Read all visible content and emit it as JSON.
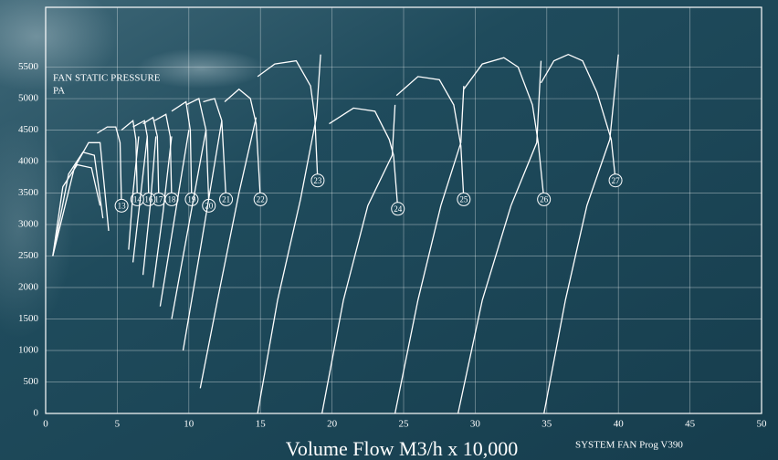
{
  "chart_data": {
    "type": "line",
    "y_label_lines": [
      "FAN STATIC PRESSURE",
      "PA"
    ],
    "x_label": "Volume Flow M3/h x 10,000",
    "footnote": "SYSTEM FAN Prog V390",
    "xlim": [
      0,
      50
    ],
    "ylim": [
      0,
      6450
    ],
    "xticks": [
      0,
      5,
      10,
      15,
      20,
      25,
      30,
      35,
      40,
      45,
      50
    ],
    "yticks": [
      0,
      500,
      1000,
      1500,
      2000,
      2500,
      3000,
      3500,
      4000,
      4500,
      5000,
      5500
    ],
    "grid": true,
    "color": "#ffffff",
    "series": [
      {
        "name": "27",
        "x": [
          34.6,
          35.5,
          36.5,
          37.5,
          38.5,
          39.5,
          39.8
        ],
        "values": [
          5250,
          5600,
          5700,
          5600,
          5100,
          4350,
          3700
        ]
      },
      {
        "name": "26",
        "x": [
          29.2,
          30.5,
          32,
          33,
          34,
          34.4,
          34.8
        ],
        "values": [
          5150,
          5550,
          5650,
          5500,
          4900,
          4300,
          3400
        ]
      },
      {
        "name": "25",
        "x": [
          24.5,
          26,
          27.5,
          28.5,
          29,
          29.2
        ],
        "values": [
          5050,
          5350,
          5300,
          4900,
          4250,
          3400
        ]
      },
      {
        "name": "24",
        "x": [
          19.8,
          21.5,
          23,
          24,
          24.3,
          24.6
        ],
        "values": [
          4600,
          4850,
          4800,
          4350,
          4100,
          3250
        ]
      },
      {
        "name": "23",
        "x": [
          14.8,
          16,
          17.5,
          18.5,
          18.8,
          19
        ],
        "values": [
          5350,
          5550,
          5600,
          5200,
          4700,
          3700
        ]
      },
      {
        "name": "22",
        "x": [
          12.5,
          13.5,
          14.3,
          14.7,
          15
        ],
        "values": [
          4950,
          5150,
          5000,
          4600,
          3400
        ]
      },
      {
        "name": "21",
        "x": [
          11,
          11.8,
          12.3,
          12.6
        ],
        "values": [
          4950,
          5000,
          4650,
          3400
        ]
      },
      {
        "name": "20",
        "x": [
          9.8,
          10.7,
          11.2,
          11.4
        ],
        "values": [
          4900,
          5000,
          4500,
          3300
        ]
      },
      {
        "name": "19",
        "x": [
          8.8,
          9.8,
          10.1,
          10.2
        ],
        "values": [
          4800,
          4950,
          4500,
          3400
        ]
      },
      {
        "name": "18",
        "x": [
          7.6,
          8.4,
          8.7,
          8.8
        ],
        "values": [
          4650,
          4750,
          4400,
          3400
        ]
      },
      {
        "name": "17",
        "x": [
          6.8,
          7.5,
          7.8,
          7.9
        ],
        "values": [
          4600,
          4700,
          4400,
          3400
        ]
      },
      {
        "name": "16",
        "x": [
          6.1,
          6.9,
          7.1,
          7.2
        ],
        "values": [
          4550,
          4650,
          4400,
          3400
        ]
      },
      {
        "name": "14",
        "x": [
          5.3,
          6.1,
          6.3,
          6.4
        ],
        "values": [
          4500,
          4650,
          4350,
          3400
        ]
      },
      {
        "name": "13",
        "x": [
          3.6,
          4.3,
          4.9,
          5.2,
          5.3
        ],
        "values": [
          4450,
          4550,
          4550,
          4300,
          3300
        ]
      },
      {
        "x": [
          34.8,
          36.3,
          37.8,
          39.4,
          40
        ],
        "values": [
          0,
          1800,
          3300,
          4350,
          5700
        ]
      },
      {
        "x": [
          28.8,
          30.5,
          32.5,
          34.3,
          34.6
        ],
        "values": [
          0,
          1800,
          3300,
          4300,
          5600
        ]
      },
      {
        "x": [
          24.4,
          26,
          27.6,
          29,
          29.2
        ],
        "values": [
          0,
          1800,
          3300,
          4300,
          5200
        ]
      },
      {
        "x": [
          19.3,
          20.8,
          22.5,
          24.2,
          24.4
        ],
        "values": [
          0,
          1800,
          3300,
          4100,
          4900
        ]
      },
      {
        "x": [
          14.8,
          16.2,
          17.8,
          18.9,
          19.2
        ],
        "values": [
          0,
          1800,
          3400,
          4700,
          5700
        ]
      },
      {
        "x": [
          10.8,
          12,
          13.5,
          14.7
        ],
        "values": [
          400,
          1800,
          3500,
          4700
        ]
      },
      {
        "x": [
          9.6,
          10.8,
          12.3
        ],
        "values": [
          1000,
          2600,
          4650
        ]
      },
      {
        "x": [
          8.8,
          10,
          11.2
        ],
        "values": [
          1500,
          3000,
          4500
        ]
      },
      {
        "x": [
          8,
          9,
          10
        ],
        "values": [
          1700,
          3100,
          4500
        ]
      },
      {
        "x": [
          7.5,
          8.2,
          8.8
        ],
        "values": [
          2000,
          3200,
          4400
        ]
      },
      {
        "x": [
          6.8,
          7.3,
          7.7
        ],
        "values": [
          2200,
          3300,
          4400
        ]
      },
      {
        "x": [
          6.1,
          6.6,
          7.1
        ],
        "values": [
          2400,
          3400,
          4400
        ]
      },
      {
        "x": [
          5.8,
          6.1,
          6.5
        ],
        "values": [
          2600,
          3500,
          4400
        ]
      },
      {
        "x": [
          0.5,
          1.2,
          2.2,
          3.2,
          3.8
        ],
        "values": [
          2500,
          3600,
          3950,
          3900,
          3300
        ]
      },
      {
        "x": [
          0.5,
          1.6,
          2.6,
          3.4,
          4.0
        ],
        "values": [
          2500,
          3800,
          4150,
          4100,
          3100
        ]
      },
      {
        "x": [
          0.5,
          2.0,
          3.0,
          3.8,
          4.4
        ],
        "values": [
          2500,
          3900,
          4300,
          4300,
          2900
        ]
      }
    ]
  }
}
